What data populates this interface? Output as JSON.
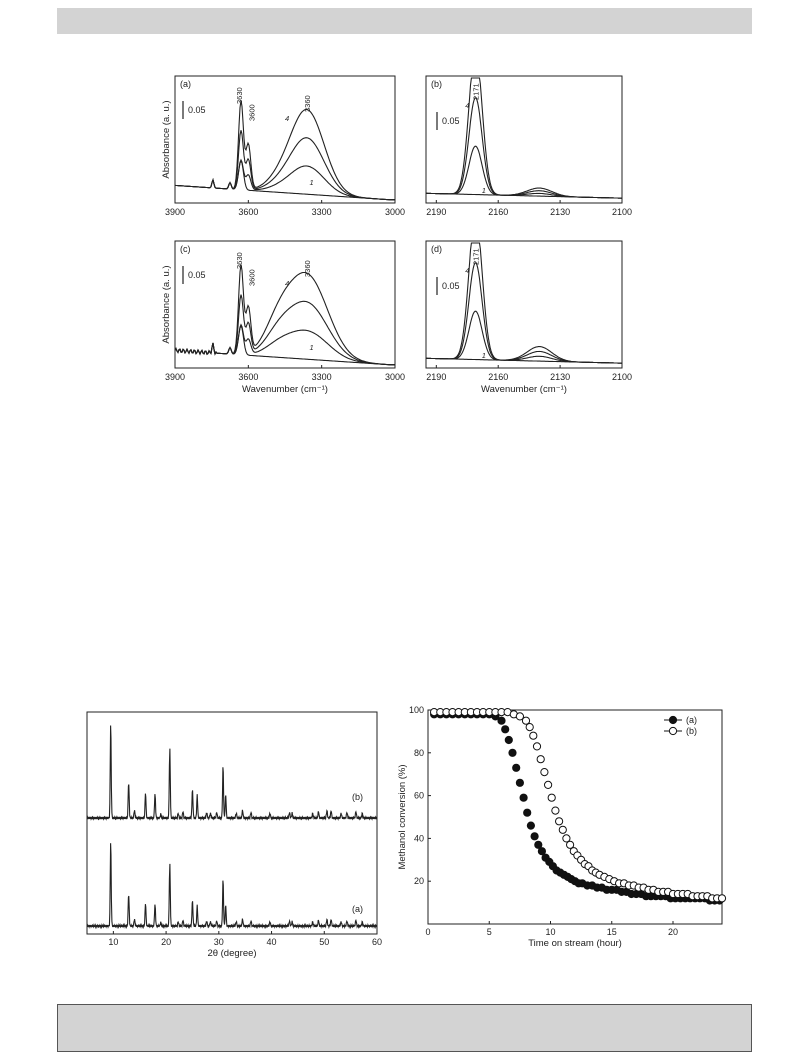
{
  "page": {
    "top_band_color": "#d3d3d3",
    "bottom_band_color": "#d3d3d3"
  },
  "ir_figure": {
    "panels": [
      {
        "id": "a",
        "label": "(a)",
        "x_ticks": [
          "3900",
          "3600",
          "3300",
          "3000"
        ],
        "x_range": [
          3900,
          3000
        ],
        "scale_bar_label": "0.05",
        "peak_labels": [
          "3630",
          "3600",
          "3360"
        ],
        "curve_labels": [
          "4",
          "1"
        ],
        "ylabel": "Absorbance (a. u.)",
        "xlabel": ""
      },
      {
        "id": "b",
        "label": "(b)",
        "x_ticks": [
          "2190",
          "2160",
          "2130",
          "2100"
        ],
        "x_range": [
          2195,
          2100
        ],
        "scale_bar_label": "0.05",
        "peak_labels": [
          "2171"
        ],
        "curve_labels": [
          "4",
          "1"
        ],
        "ylabel": "",
        "xlabel": ""
      },
      {
        "id": "c",
        "label": "(c)",
        "x_ticks": [
          "3900",
          "3600",
          "3300",
          "3000"
        ],
        "x_range": [
          3900,
          3000
        ],
        "scale_bar_label": "0.05",
        "peak_labels": [
          "3630",
          "3600",
          "3360"
        ],
        "curve_labels": [
          "4",
          "1"
        ],
        "ylabel": "Absorbance (a. u.)",
        "xlabel": "Wavenumber (cm⁻¹)"
      },
      {
        "id": "d",
        "label": "(d)",
        "x_ticks": [
          "2190",
          "2160",
          "2130",
          "2100"
        ],
        "x_range": [
          2195,
          2100
        ],
        "scale_bar_label": "0.05",
        "peak_labels": [
          "2171"
        ],
        "curve_labels": [
          "4",
          "1"
        ],
        "ylabel": "",
        "xlabel": "Wavenumber (cm⁻¹)"
      }
    ]
  },
  "xrd_figure": {
    "x_ticks": [
      "10",
      "20",
      "30",
      "40",
      "50",
      "60"
    ],
    "x_range": [
      5,
      60
    ],
    "xlabel": "2θ (degree)",
    "series_labels": [
      "(b)",
      "(a)"
    ]
  },
  "chart_data": {
    "type": "scatter",
    "xlabel": "Time on stream (hour)",
    "ylabel": "Methanol conversion (%)",
    "xlim": [
      0,
      24
    ],
    "ylim": [
      0,
      100
    ],
    "x_ticks": [
      "0",
      "5",
      "10",
      "15",
      "20"
    ],
    "y_ticks": [
      "20",
      "40",
      "60",
      "80",
      "100"
    ],
    "legend_position": "top-right",
    "series": [
      {
        "name": "(a)",
        "marker": "filled-circle",
        "points": [
          [
            0.5,
            98
          ],
          [
            1,
            98
          ],
          [
            1.5,
            98
          ],
          [
            2,
            98
          ],
          [
            2.5,
            98
          ],
          [
            3,
            98
          ],
          [
            3.5,
            98
          ],
          [
            4,
            98
          ],
          [
            4.5,
            98
          ],
          [
            5,
            98
          ],
          [
            5.5,
            97
          ],
          [
            6,
            95
          ],
          [
            6.3,
            91
          ],
          [
            6.6,
            86
          ],
          [
            6.9,
            80
          ],
          [
            7.2,
            73
          ],
          [
            7.5,
            66
          ],
          [
            7.8,
            59
          ],
          [
            8.1,
            52
          ],
          [
            8.4,
            46
          ],
          [
            8.7,
            41
          ],
          [
            9,
            37
          ],
          [
            9.3,
            34
          ],
          [
            9.6,
            31
          ],
          [
            9.9,
            29
          ],
          [
            10.2,
            27
          ],
          [
            10.5,
            25
          ],
          [
            10.8,
            24
          ],
          [
            11.1,
            23
          ],
          [
            11.4,
            22
          ],
          [
            11.7,
            21
          ],
          [
            12,
            20
          ],
          [
            12.3,
            19
          ],
          [
            12.6,
            19
          ],
          [
            13,
            18
          ],
          [
            13.4,
            18
          ],
          [
            13.8,
            17
          ],
          [
            14.2,
            17
          ],
          [
            14.6,
            16
          ],
          [
            15,
            16
          ],
          [
            15.4,
            16
          ],
          [
            15.8,
            15
          ],
          [
            16.2,
            15
          ],
          [
            16.6,
            14
          ],
          [
            17,
            14
          ],
          [
            17.4,
            14
          ],
          [
            17.8,
            13
          ],
          [
            18.2,
            13
          ],
          [
            18.6,
            13
          ],
          [
            19,
            13
          ],
          [
            19.4,
            13
          ],
          [
            19.8,
            12
          ],
          [
            20.2,
            12
          ],
          [
            20.6,
            12
          ],
          [
            21,
            12
          ],
          [
            21.4,
            12
          ],
          [
            21.8,
            12
          ],
          [
            22.2,
            12
          ],
          [
            22.6,
            12
          ],
          [
            23,
            11
          ],
          [
            23.4,
            11
          ],
          [
            23.8,
            11
          ]
        ]
      },
      {
        "name": "(b)",
        "marker": "open-circle",
        "points": [
          [
            0.5,
            99
          ],
          [
            1,
            99
          ],
          [
            1.5,
            99
          ],
          [
            2,
            99
          ],
          [
            2.5,
            99
          ],
          [
            3,
            99
          ],
          [
            3.5,
            99
          ],
          [
            4,
            99
          ],
          [
            4.5,
            99
          ],
          [
            5,
            99
          ],
          [
            5.5,
            99
          ],
          [
            6,
            99
          ],
          [
            6.5,
            99
          ],
          [
            7,
            98
          ],
          [
            7.5,
            97
          ],
          [
            8,
            95
          ],
          [
            8.3,
            92
          ],
          [
            8.6,
            88
          ],
          [
            8.9,
            83
          ],
          [
            9.2,
            77
          ],
          [
            9.5,
            71
          ],
          [
            9.8,
            65
          ],
          [
            10.1,
            59
          ],
          [
            10.4,
            53
          ],
          [
            10.7,
            48
          ],
          [
            11,
            44
          ],
          [
            11.3,
            40
          ],
          [
            11.6,
            37
          ],
          [
            11.9,
            34
          ],
          [
            12.2,
            32
          ],
          [
            12.5,
            30
          ],
          [
            12.8,
            28
          ],
          [
            13.1,
            27
          ],
          [
            13.4,
            25
          ],
          [
            13.7,
            24
          ],
          [
            14,
            23
          ],
          [
            14.4,
            22
          ],
          [
            14.8,
            21
          ],
          [
            15.2,
            20
          ],
          [
            15.6,
            19
          ],
          [
            16,
            19
          ],
          [
            16.4,
            18
          ],
          [
            16.8,
            18
          ],
          [
            17.2,
            17
          ],
          [
            17.6,
            17
          ],
          [
            18,
            16
          ],
          [
            18.4,
            16
          ],
          [
            18.8,
            15
          ],
          [
            19.2,
            15
          ],
          [
            19.6,
            15
          ],
          [
            20,
            14
          ],
          [
            20.4,
            14
          ],
          [
            20.8,
            14
          ],
          [
            21.2,
            14
          ],
          [
            21.6,
            13
          ],
          [
            22,
            13
          ],
          [
            22.4,
            13
          ],
          [
            22.8,
            13
          ],
          [
            23.2,
            12
          ],
          [
            23.6,
            12
          ],
          [
            24,
            12
          ]
        ]
      }
    ]
  }
}
